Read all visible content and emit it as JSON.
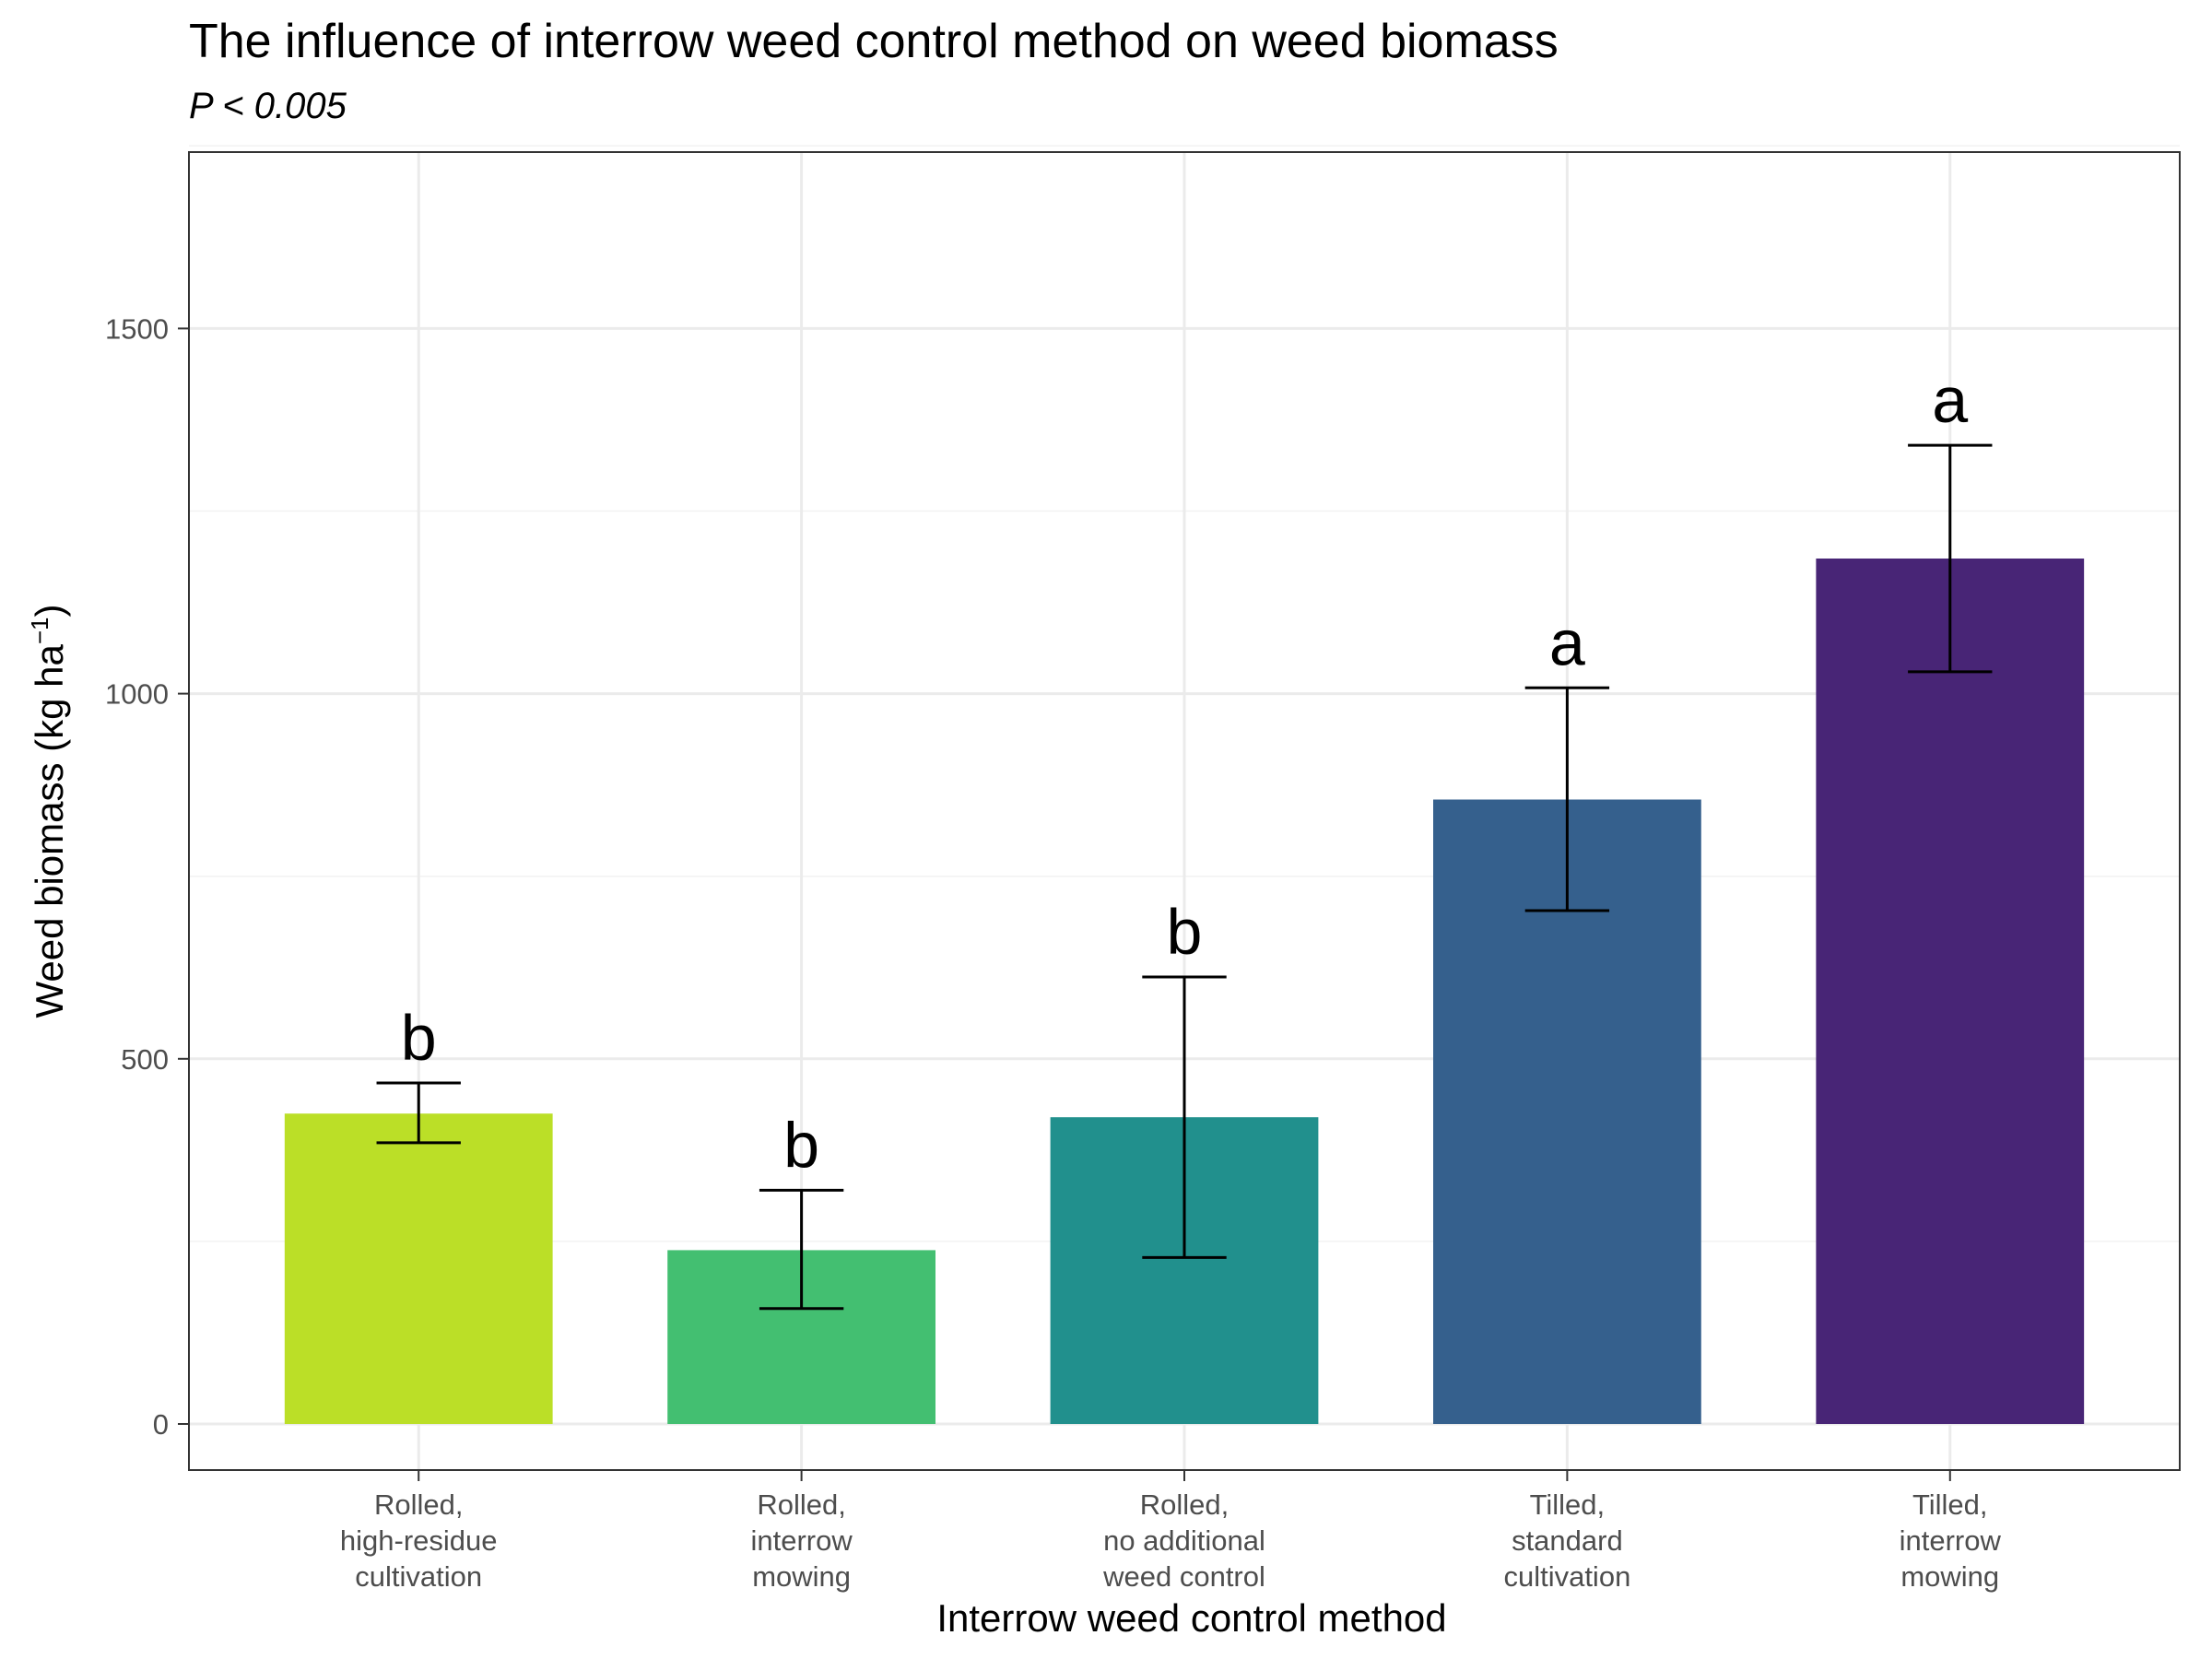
{
  "chart_data": {
    "type": "bar",
    "title": "The influence of interrow weed control method on weed biomass",
    "subtitle": "P < 0.005",
    "xlabel": "Interrow weed control method",
    "ylabel_main": "Weed biomass (kg ha",
    "ylabel_sup": "−1",
    "ylabel_end": ")",
    "ylim": [
      -60,
      1745
    ],
    "yticks": [
      0,
      500,
      1000,
      1500
    ],
    "minor_yticks": [
      250,
      750,
      1250,
      1750
    ],
    "grid": true,
    "categories": [
      [
        "Rolled,",
        "high-residue",
        "cultivation"
      ],
      [
        "Rolled,",
        "interrow",
        "mowing"
      ],
      [
        "Rolled,",
        "no additional",
        "weed control"
      ],
      [
        "Tilled,",
        "standard",
        "cultivation"
      ],
      [
        "Tilled,",
        "interrow",
        "mowing"
      ]
    ],
    "values": [
      425,
      238,
      420,
      855,
      1185
    ],
    "error_low": [
      385,
      158,
      228,
      703,
      1030
    ],
    "error_high": [
      467,
      320,
      612,
      1008,
      1340
    ],
    "significance_letters": [
      "b",
      "b",
      "b",
      "a",
      "a"
    ],
    "colors": [
      "#bbdf27",
      "#43bf71",
      "#21908d",
      "#35608d",
      "#482576"
    ]
  }
}
